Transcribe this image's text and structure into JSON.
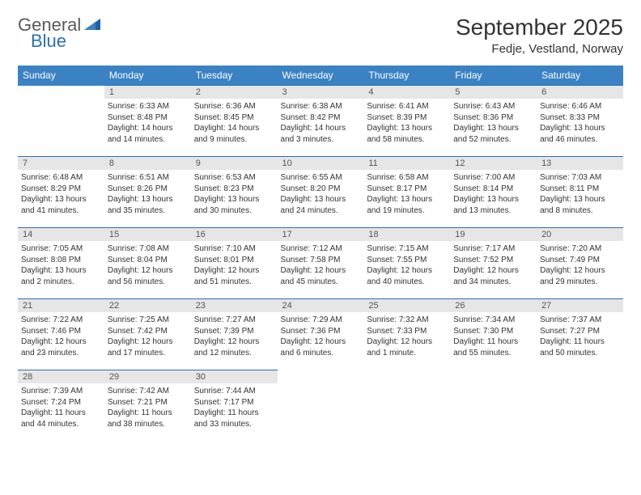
{
  "brand": {
    "general": "General",
    "blue": "Blue"
  },
  "title": "September 2025",
  "location": "Fedje, Vestland, Norway",
  "colors": {
    "header_bg": "#3b82c4",
    "day_number_bg": "#e6e6e6",
    "rule": "#2a6fb5",
    "brand_blue": "#2a6fb5",
    "brand_gray": "#5a5a5a"
  },
  "weekdays": [
    "Sunday",
    "Monday",
    "Tuesday",
    "Wednesday",
    "Thursday",
    "Friday",
    "Saturday"
  ],
  "weeks": [
    [
      null,
      {
        "n": "1",
        "sr": "Sunrise: 6:33 AM",
        "ss": "Sunset: 8:48 PM",
        "dl": "Daylight: 14 hours and 14 minutes."
      },
      {
        "n": "2",
        "sr": "Sunrise: 6:36 AM",
        "ss": "Sunset: 8:45 PM",
        "dl": "Daylight: 14 hours and 9 minutes."
      },
      {
        "n": "3",
        "sr": "Sunrise: 6:38 AM",
        "ss": "Sunset: 8:42 PM",
        "dl": "Daylight: 14 hours and 3 minutes."
      },
      {
        "n": "4",
        "sr": "Sunrise: 6:41 AM",
        "ss": "Sunset: 8:39 PM",
        "dl": "Daylight: 13 hours and 58 minutes."
      },
      {
        "n": "5",
        "sr": "Sunrise: 6:43 AM",
        "ss": "Sunset: 8:36 PM",
        "dl": "Daylight: 13 hours and 52 minutes."
      },
      {
        "n": "6",
        "sr": "Sunrise: 6:46 AM",
        "ss": "Sunset: 8:33 PM",
        "dl": "Daylight: 13 hours and 46 minutes."
      }
    ],
    [
      {
        "n": "7",
        "sr": "Sunrise: 6:48 AM",
        "ss": "Sunset: 8:29 PM",
        "dl": "Daylight: 13 hours and 41 minutes."
      },
      {
        "n": "8",
        "sr": "Sunrise: 6:51 AM",
        "ss": "Sunset: 8:26 PM",
        "dl": "Daylight: 13 hours and 35 minutes."
      },
      {
        "n": "9",
        "sr": "Sunrise: 6:53 AM",
        "ss": "Sunset: 8:23 PM",
        "dl": "Daylight: 13 hours and 30 minutes."
      },
      {
        "n": "10",
        "sr": "Sunrise: 6:55 AM",
        "ss": "Sunset: 8:20 PM",
        "dl": "Daylight: 13 hours and 24 minutes."
      },
      {
        "n": "11",
        "sr": "Sunrise: 6:58 AM",
        "ss": "Sunset: 8:17 PM",
        "dl": "Daylight: 13 hours and 19 minutes."
      },
      {
        "n": "12",
        "sr": "Sunrise: 7:00 AM",
        "ss": "Sunset: 8:14 PM",
        "dl": "Daylight: 13 hours and 13 minutes."
      },
      {
        "n": "13",
        "sr": "Sunrise: 7:03 AM",
        "ss": "Sunset: 8:11 PM",
        "dl": "Daylight: 13 hours and 8 minutes."
      }
    ],
    [
      {
        "n": "14",
        "sr": "Sunrise: 7:05 AM",
        "ss": "Sunset: 8:08 PM",
        "dl": "Daylight: 13 hours and 2 minutes."
      },
      {
        "n": "15",
        "sr": "Sunrise: 7:08 AM",
        "ss": "Sunset: 8:04 PM",
        "dl": "Daylight: 12 hours and 56 minutes."
      },
      {
        "n": "16",
        "sr": "Sunrise: 7:10 AM",
        "ss": "Sunset: 8:01 PM",
        "dl": "Daylight: 12 hours and 51 minutes."
      },
      {
        "n": "17",
        "sr": "Sunrise: 7:12 AM",
        "ss": "Sunset: 7:58 PM",
        "dl": "Daylight: 12 hours and 45 minutes."
      },
      {
        "n": "18",
        "sr": "Sunrise: 7:15 AM",
        "ss": "Sunset: 7:55 PM",
        "dl": "Daylight: 12 hours and 40 minutes."
      },
      {
        "n": "19",
        "sr": "Sunrise: 7:17 AM",
        "ss": "Sunset: 7:52 PM",
        "dl": "Daylight: 12 hours and 34 minutes."
      },
      {
        "n": "20",
        "sr": "Sunrise: 7:20 AM",
        "ss": "Sunset: 7:49 PM",
        "dl": "Daylight: 12 hours and 29 minutes."
      }
    ],
    [
      {
        "n": "21",
        "sr": "Sunrise: 7:22 AM",
        "ss": "Sunset: 7:46 PM",
        "dl": "Daylight: 12 hours and 23 minutes."
      },
      {
        "n": "22",
        "sr": "Sunrise: 7:25 AM",
        "ss": "Sunset: 7:42 PM",
        "dl": "Daylight: 12 hours and 17 minutes."
      },
      {
        "n": "23",
        "sr": "Sunrise: 7:27 AM",
        "ss": "Sunset: 7:39 PM",
        "dl": "Daylight: 12 hours and 12 minutes."
      },
      {
        "n": "24",
        "sr": "Sunrise: 7:29 AM",
        "ss": "Sunset: 7:36 PM",
        "dl": "Daylight: 12 hours and 6 minutes."
      },
      {
        "n": "25",
        "sr": "Sunrise: 7:32 AM",
        "ss": "Sunset: 7:33 PM",
        "dl": "Daylight: 12 hours and 1 minute."
      },
      {
        "n": "26",
        "sr": "Sunrise: 7:34 AM",
        "ss": "Sunset: 7:30 PM",
        "dl": "Daylight: 11 hours and 55 minutes."
      },
      {
        "n": "27",
        "sr": "Sunrise: 7:37 AM",
        "ss": "Sunset: 7:27 PM",
        "dl": "Daylight: 11 hours and 50 minutes."
      }
    ],
    [
      {
        "n": "28",
        "sr": "Sunrise: 7:39 AM",
        "ss": "Sunset: 7:24 PM",
        "dl": "Daylight: 11 hours and 44 minutes."
      },
      {
        "n": "29",
        "sr": "Sunrise: 7:42 AM",
        "ss": "Sunset: 7:21 PM",
        "dl": "Daylight: 11 hours and 38 minutes."
      },
      {
        "n": "30",
        "sr": "Sunrise: 7:44 AM",
        "ss": "Sunset: 7:17 PM",
        "dl": "Daylight: 11 hours and 33 minutes."
      },
      null,
      null,
      null,
      null
    ]
  ]
}
